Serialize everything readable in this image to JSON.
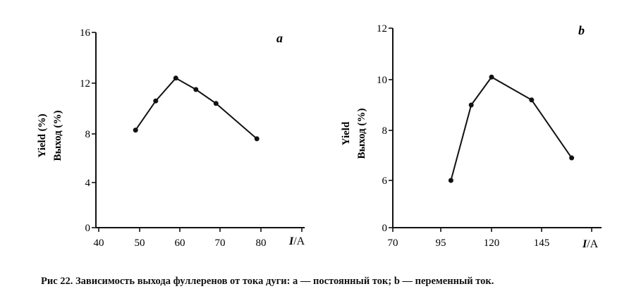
{
  "chart_data": [
    {
      "type": "line",
      "panel_label": "a",
      "ylabel_line1": "Yield (%)",
      "ylabel_line2": "Выход (%)",
      "xlabel": "I/A",
      "xlabel_var": "I",
      "xlabel_unit": "/A",
      "xticks": [
        40,
        50,
        60,
        70,
        80
      ],
      "yticks": [
        0,
        4,
        8,
        12,
        16
      ],
      "xlim": [
        40,
        90
      ],
      "ylim": [
        0,
        16
      ],
      "series": [
        {
          "x": [
            49,
            54,
            59,
            64,
            69,
            79
          ],
          "y": [
            8.3,
            10.6,
            12.4,
            11.5,
            10.4,
            7.6
          ]
        }
      ]
    },
    {
      "type": "line",
      "panel_label": "b",
      "ylabel_line1": "Yield",
      "ylabel_line2": "Выход (%)",
      "xlabel": "I/A",
      "xlabel_var": "I",
      "xlabel_unit": "/A",
      "xticks": [
        70,
        95,
        120,
        145
      ],
      "yticks": [
        0,
        6,
        8,
        10,
        12
      ],
      "xlim": [
        70,
        170
      ],
      "ylim": [
        0,
        12
      ],
      "series": [
        {
          "x": [
            100,
            110,
            120,
            140,
            160
          ],
          "y": [
            6.0,
            9.0,
            10.1,
            9.2,
            6.9
          ]
        }
      ]
    }
  ],
  "caption": {
    "prefix": "Рис 22.",
    "text": " Зависимость выхода фуллеренов от тока дуги: a — постоянный ток; b — переменный ток."
  }
}
